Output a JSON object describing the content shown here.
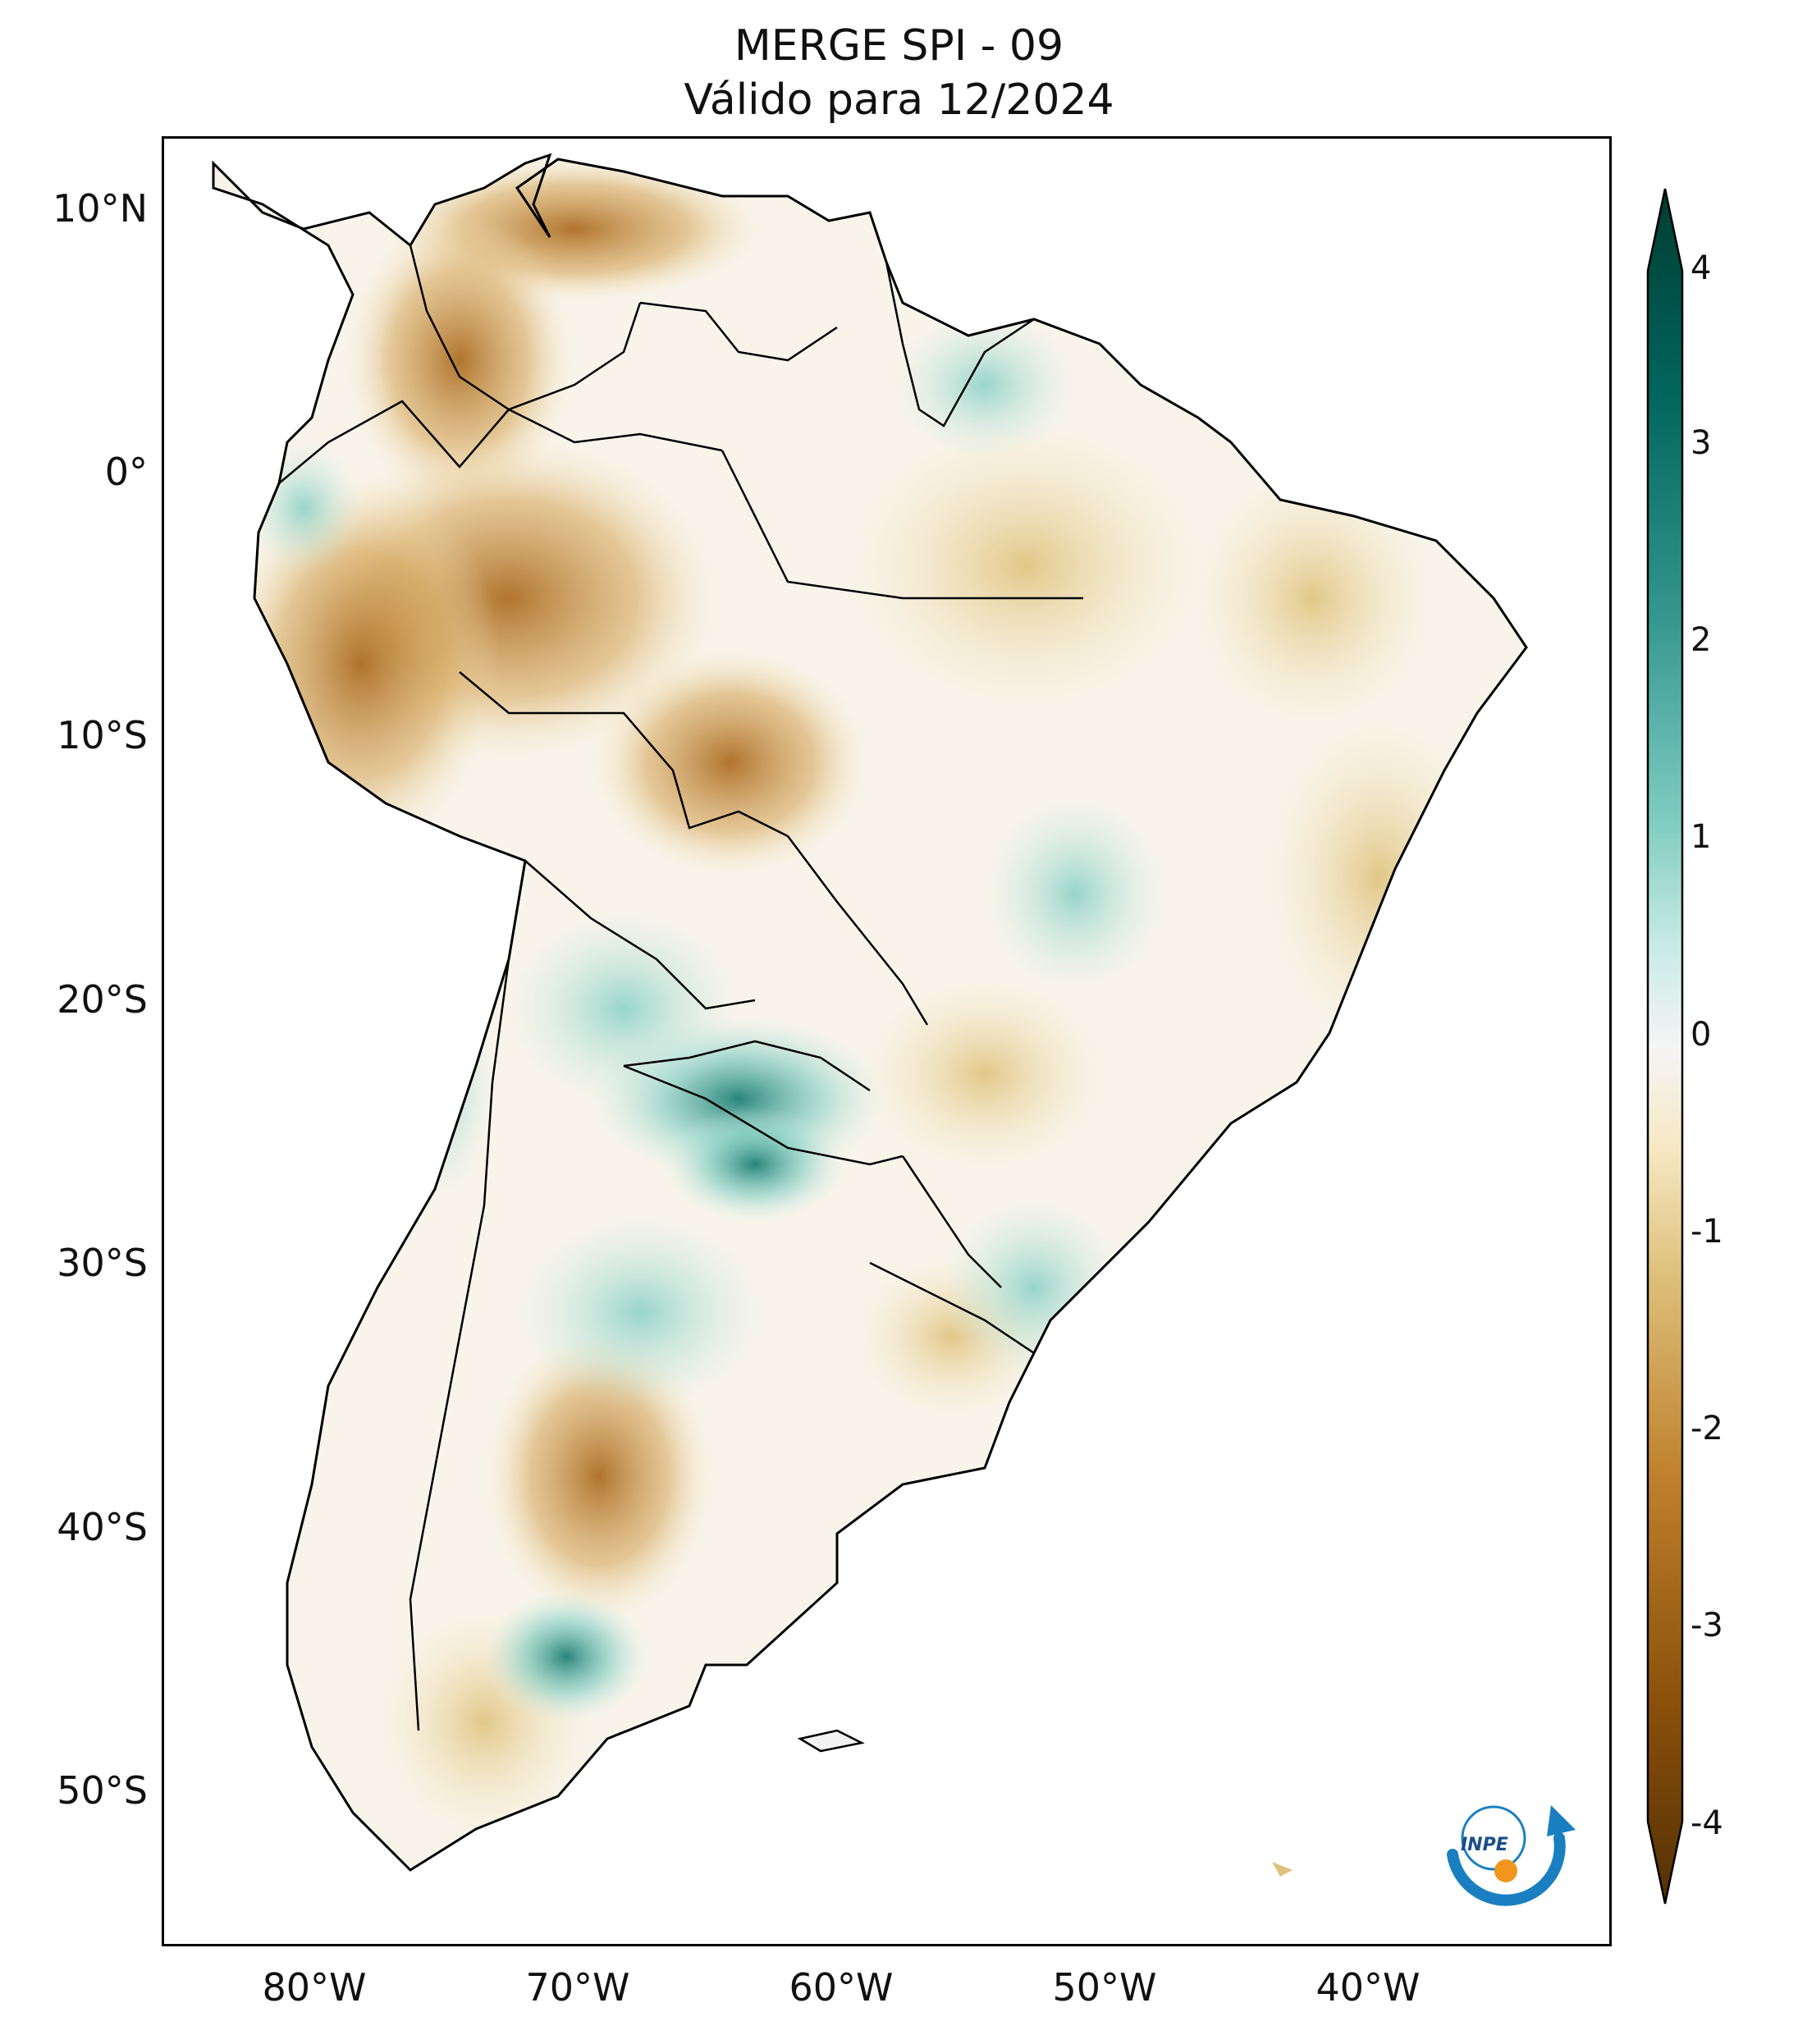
{
  "title": {
    "line1": "MERGE   SPI - 09",
    "line2": "Válido para 12/2024"
  },
  "axes": {
    "lat_ticks": [
      "10°N",
      "0°",
      "10°S",
      "20°S",
      "30°S",
      "40°S",
      "50°S"
    ],
    "lon_ticks": [
      "80°W",
      "70°W",
      "60°W",
      "50°W",
      "40°W"
    ]
  },
  "colorbar": {
    "ticks": [
      "4",
      "3",
      "2",
      "1",
      "0",
      "-1",
      "-2",
      "-3",
      "-4"
    ],
    "colors": {
      "very_dry": "#543005",
      "dry": "#8c510a",
      "moderately_dry": "#bf812d",
      "slightly_dry": "#dfc27d",
      "near_dry": "#f6e8c3",
      "neutral": "#f5f5f5",
      "near_wet": "#c7eae5",
      "slightly_wet": "#80cdc1",
      "moderately_wet": "#35978f",
      "wet": "#01665e",
      "very_wet": "#003c30"
    }
  },
  "logo": {
    "text": "INPE"
  }
}
